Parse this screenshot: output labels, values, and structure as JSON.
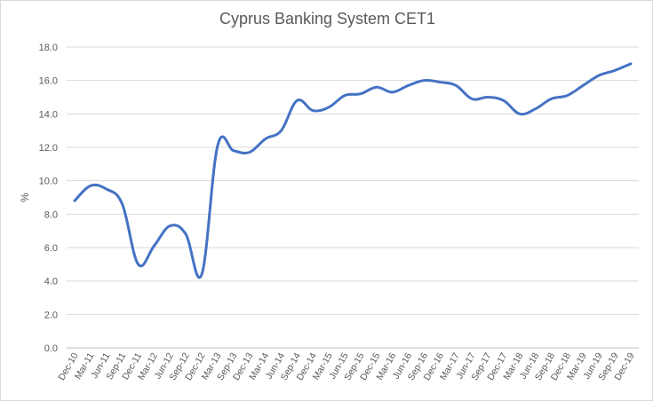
{
  "chart_data": {
    "type": "line",
    "title": "Cyprus Banking System CET1",
    "xlabel": "",
    "ylabel": "%",
    "ylim": [
      0,
      18
    ],
    "ytick_step": 2,
    "ytick_format_decimals": 1,
    "grid": true,
    "legend": "none",
    "line_color": "#4472c4",
    "categories": [
      "Dec-10",
      "Mar-11",
      "Jun-11",
      "Sep-11",
      "Dec-11",
      "Mar-12",
      "Jun-12",
      "Sep-12",
      "Dec-12",
      "Mar-13",
      "Sep-13",
      "Dec-13",
      "Mar-14",
      "Jun-14",
      "Sep-14",
      "Dec-14",
      "Mar-15",
      "Jun-15",
      "Sep-15",
      "Dec-15",
      "Mar-16",
      "Jun-16",
      "Sep-16",
      "Dec-16",
      "Mar-17",
      "Jun-17",
      "Sep-17",
      "Dec-17",
      "Mar-18",
      "Jun-18",
      "Sep-18",
      "Dec-18",
      "Mar-19",
      "Jun-19",
      "Sep-19",
      "Dec-19"
    ],
    "series": [
      {
        "values": [
          8.8,
          9.7,
          9.5,
          8.6,
          5.0,
          6.1,
          7.3,
          6.8,
          4.4,
          12.1,
          11.8,
          11.7,
          12.5,
          13.0,
          14.8,
          14.2,
          14.4,
          15.1,
          15.2,
          15.6,
          15.3,
          15.7,
          16.0,
          15.9,
          15.7,
          14.9,
          15.0,
          14.8,
          14.0,
          14.3,
          14.9,
          15.1,
          15.7,
          16.3,
          16.6,
          17.0
        ]
      }
    ]
  }
}
